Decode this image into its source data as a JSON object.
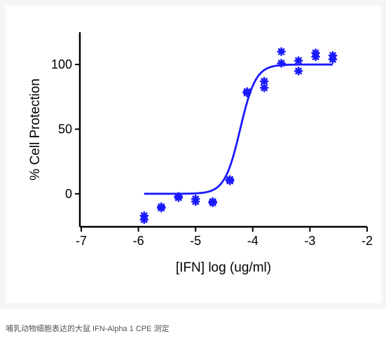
{
  "chart_data": {
    "type": "scatter",
    "title": "",
    "xlabel": "[IFN] log (ug/ml)",
    "ylabel": "% Cell Protection",
    "xlim": [
      -7,
      -2
    ],
    "ylim": [
      -25,
      125
    ],
    "xticks": [
      -7,
      -6,
      -5,
      -4,
      -3,
      -2
    ],
    "xtick_labels": [
      "-7",
      "-6",
      "-5",
      "-4",
      "-3",
      "-2"
    ],
    "yticks": [
      0,
      50,
      100
    ],
    "ytick_labels": [
      "0",
      "50",
      "100"
    ],
    "grid": false,
    "legend": "none",
    "series": [
      {
        "marker": "asterisk",
        "color": "#1a1aff",
        "x": [
          -5.9,
          -5.9,
          -5.6,
          -5.6,
          -5.3,
          -5.3,
          -5.0,
          -5.0,
          -4.7,
          -4.7,
          -4.4,
          -4.4,
          -4.1,
          -4.1,
          -3.8,
          -3.8,
          -3.5,
          -3.5,
          -3.2,
          -3.2,
          -2.9,
          -2.9,
          -2.6,
          -2.6
        ],
        "y": [
          -17,
          -20,
          -10,
          -11,
          -2,
          -3,
          -4,
          -6,
          -6,
          -7,
          10,
          11,
          78,
          79,
          87,
          82,
          110,
          101,
          103,
          95,
          109,
          106,
          107,
          104
        ]
      }
    ],
    "fit_curve": {
      "type": "sigmoid",
      "color": "#1a1aff",
      "bottom": 0,
      "top": 100,
      "logEC50": -4.22,
      "hill_slope": 3.2,
      "x_range": [
        -5.9,
        -2.6
      ]
    }
  },
  "caption": "哺乳动物细胞表达的大鼠 IFN-Alpha 1 CPE 测定"
}
